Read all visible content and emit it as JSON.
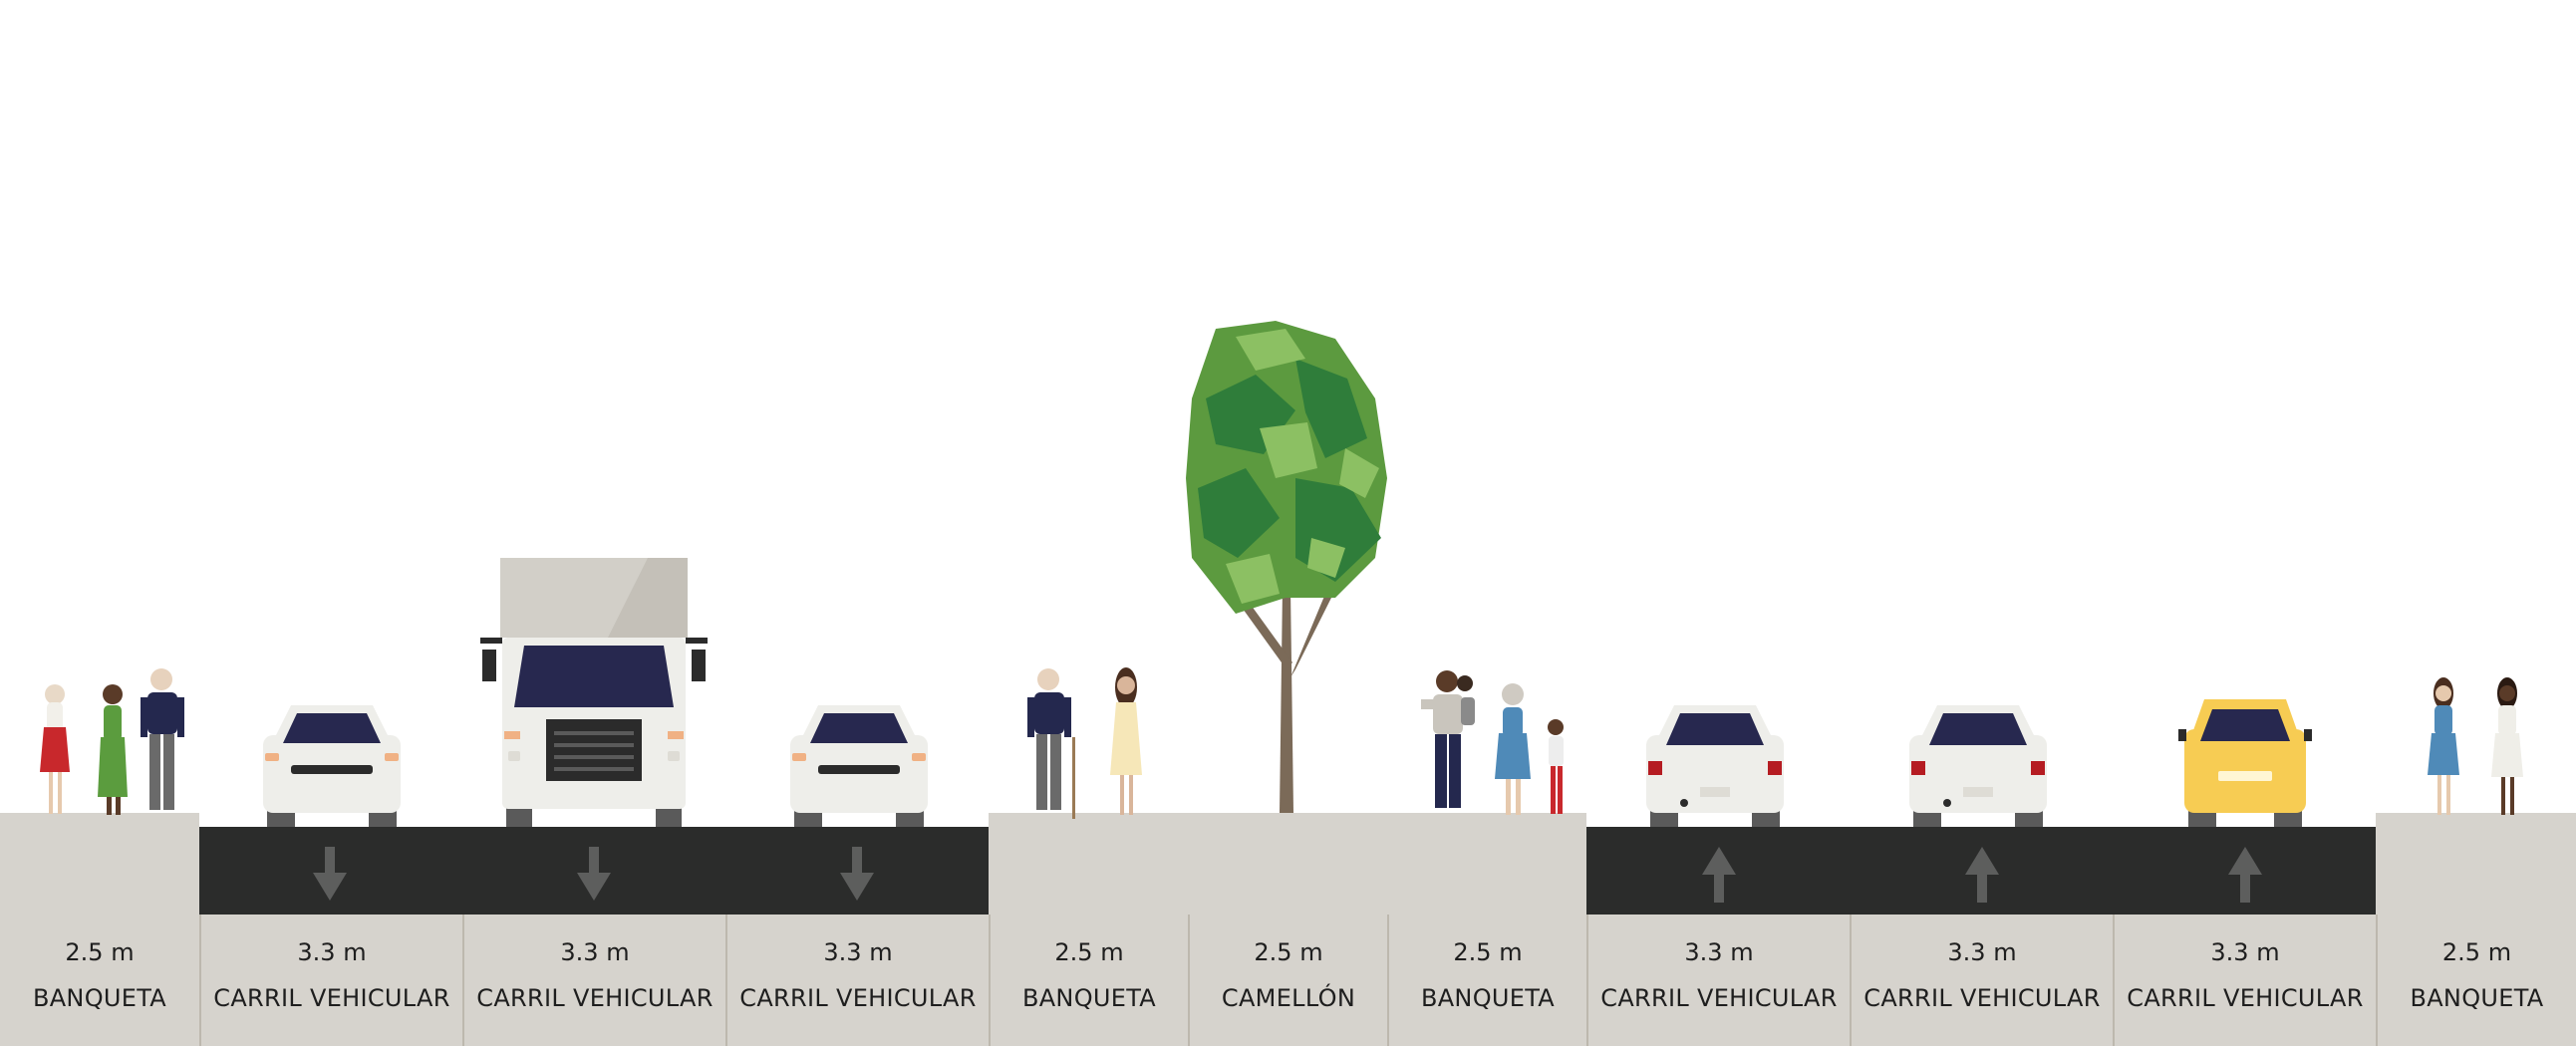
{
  "street": {
    "segments": [
      {
        "id": "sidewalk-left",
        "type": "sidewalk",
        "width_label": "2.5 m",
        "name": "BANQUETA"
      },
      {
        "id": "lane-1",
        "type": "lane",
        "direction": "down",
        "vehicle": "car",
        "width_label": "3.3 m",
        "name": "CARRIL VEHICULAR"
      },
      {
        "id": "lane-2",
        "type": "lane",
        "direction": "down",
        "vehicle": "truck",
        "width_label": "3.3 m",
        "name": "CARRIL VEHICULAR"
      },
      {
        "id": "lane-3",
        "type": "lane",
        "direction": "down",
        "vehicle": "car",
        "width_label": "3.3 m",
        "name": "CARRIL VEHICULAR"
      },
      {
        "id": "sidewalk-mid-l",
        "type": "sidewalk",
        "width_label": "2.5 m",
        "name": "BANQUETA"
      },
      {
        "id": "median",
        "type": "median",
        "width_label": "2.5 m",
        "name": "CAMELLÓN"
      },
      {
        "id": "sidewalk-mid-r",
        "type": "sidewalk",
        "width_label": "2.5 m",
        "name": "BANQUETA"
      },
      {
        "id": "lane-4",
        "type": "lane",
        "direction": "up",
        "vehicle": "car-rear",
        "width_label": "3.3 m",
        "name": "CARRIL VEHICULAR"
      },
      {
        "id": "lane-5",
        "type": "lane",
        "direction": "up",
        "vehicle": "car-rear",
        "width_label": "3.3 m",
        "name": "CARRIL VEHICULAR"
      },
      {
        "id": "lane-6",
        "type": "lane",
        "direction": "up",
        "vehicle": "taxi-rear",
        "width_label": "3.3 m",
        "name": "CARRIL VEHICULAR"
      },
      {
        "id": "sidewalk-right",
        "type": "sidewalk",
        "width_label": "2.5 m",
        "name": "BANQUETA"
      }
    ]
  },
  "colors": {
    "sidewalk": "#d6d3cd",
    "asphalt": "#2b2c2b",
    "arrow": "#5d5e5d",
    "label_text": "#1e1e1e",
    "divider": "#bdb8ae",
    "car_body": "#eeeeea",
    "taxi_body": "#f7cc53",
    "windshield": "#27284f",
    "tree_trunk": "#7b6a58",
    "tree_leaf_dark": "#2f7d3a",
    "tree_leaf_mid": "#5c9a3f",
    "tree_leaf_light": "#8cc063"
  }
}
